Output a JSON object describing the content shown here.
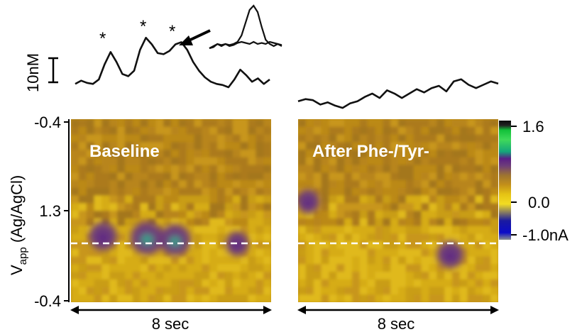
{
  "colors": {
    "trace": "#111111",
    "background_field": "#c08f14",
    "dashed_line": "#ffffff",
    "colorbar": [
      "#f3dc22",
      "#e6c414",
      "#c49118",
      "#9e7430",
      "#6e3e79",
      "#5a1e86",
      "#14a67a",
      "#3fd95a",
      "#12c13a",
      "#222222",
      "#0b0b0b",
      "#1a1aa0",
      "#0b0bc8",
      "#8a8f8f"
    ]
  },
  "scale_bar": {
    "label": "10nM"
  },
  "asterisks": [
    "*",
    "*",
    "*"
  ],
  "chart_data": [
    {
      "type": "heatmap",
      "panel": "left",
      "label": "Baseline",
      "ylabel_main": "V",
      "ylabel_sub": "app",
      "ylabel_suffix": " (Ag/AgCl)",
      "yticks": [
        "-0.4",
        "1.3",
        "-0.4"
      ],
      "xlabel": "8 sec",
      "trace": [
        7.0,
        8.5,
        7.5,
        7.0,
        9.0,
        16.0,
        21.5,
        17.0,
        11.5,
        10.5,
        13.0,
        22.5,
        28.0,
        25.0,
        21.0,
        20.5,
        22.0,
        25.0,
        26.0,
        22.5,
        17.0,
        13.0,
        10.0,
        8.0,
        7.0,
        6.5,
        5.5,
        9.0,
        13.5,
        11.0,
        8.0,
        9.5,
        7.0,
        9.0
      ],
      "hotspots": [
        {
          "t": 0.16,
          "v": 0.64,
          "amp": 0.8
        },
        {
          "t": 0.38,
          "v": 0.65,
          "amp": 1.1
        },
        {
          "t": 0.52,
          "v": 0.66,
          "amp": 1.0
        },
        {
          "t": 0.83,
          "v": 0.68,
          "amp": 0.5
        }
      ]
    },
    {
      "type": "heatmap",
      "panel": "right",
      "label": "After Phe-/Tyr-",
      "xlabel": "8 sec",
      "trace": [
        7.5,
        8.5,
        8.0,
        6.0,
        7.0,
        5.5,
        4.5,
        6.5,
        7.5,
        9.5,
        11.0,
        9.0,
        12.5,
        11.0,
        9.0,
        11.0,
        13.0,
        11.5,
        13.5,
        14.5,
        12.0,
        16.5,
        17.5,
        15.0,
        13.5,
        15.0,
        16.5,
        15.5
      ],
      "hotspots": [
        {
          "t": 0.76,
          "v": 0.74,
          "amp": 0.7
        },
        {
          "t": 0.05,
          "v": 0.45,
          "amp": 0.5
        }
      ]
    },
    {
      "type": "line",
      "panel": "inset",
      "series": [
        {
          "values": [
            2,
            3,
            4,
            3.5,
            4,
            3.5,
            4,
            5,
            8,
            14,
            20,
            22,
            19,
            12,
            6,
            4,
            3,
            4,
            3
          ]
        },
        {
          "values": [
            2,
            2.5,
            4,
            3,
            4,
            3,
            3.5,
            4.5,
            5,
            4.5,
            4,
            5,
            4,
            4.5,
            4,
            5,
            4.5,
            4,
            3.5
          ]
        }
      ]
    }
  ],
  "colorbar": {
    "ticks": [
      "1.6",
      "0.0",
      "-1.0nA"
    ],
    "range": [
      -1.0,
      1.6
    ]
  }
}
